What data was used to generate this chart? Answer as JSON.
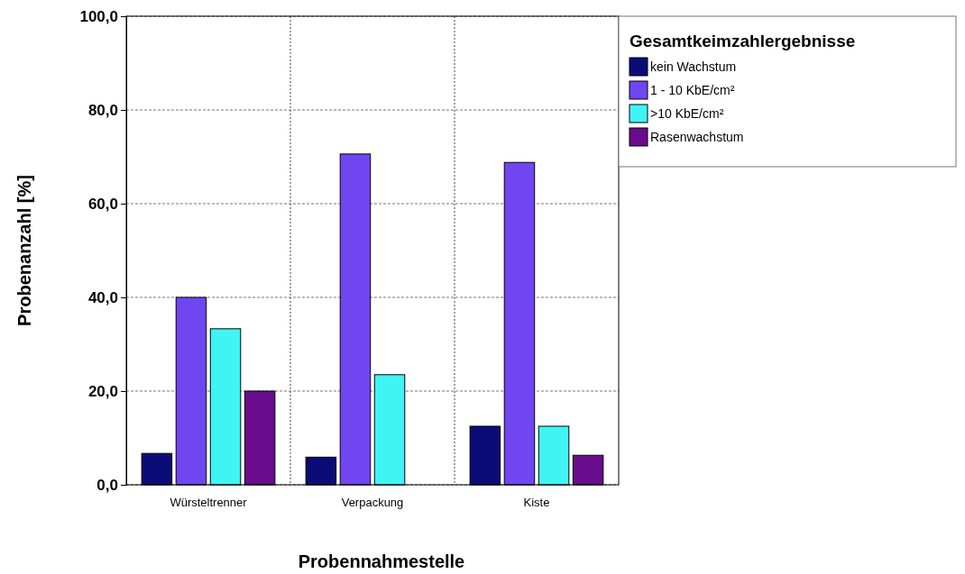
{
  "chart_data": {
    "type": "bar",
    "xlabel": "Probennahmestelle",
    "ylabel": "Probenanzahl [%]",
    "legend_title": "Gesamtkeimzahlergebnisse",
    "categories": [
      "Würsteltrenner",
      "Verpackung",
      "Kiste"
    ],
    "series": [
      {
        "name": "kein Wachstum",
        "color": "#0c0c78",
        "values": [
          6.7,
          5.9,
          12.5
        ]
      },
      {
        "name": "1 - 10 KbE/cm²",
        "color": "#7046f0",
        "values": [
          40.0,
          70.6,
          68.8
        ]
      },
      {
        "name": ">10 KbE/cm²",
        "color": "#40f4f4",
        "values": [
          33.3,
          23.5,
          12.5
        ]
      },
      {
        "name": "Rasenwachstum",
        "color": "#680c8c",
        "values": [
          20.0,
          0,
          6.3
        ]
      }
    ],
    "ylim": [
      0,
      100
    ],
    "yticks": [
      {
        "value": 0,
        "label": "0,0"
      },
      {
        "value": 20,
        "label": "20,0"
      },
      {
        "value": 40,
        "label": "40,0"
      },
      {
        "value": 60,
        "label": "60,0"
      },
      {
        "value": 80,
        "label": "80,0"
      },
      {
        "value": 100,
        "label": "100,0"
      }
    ],
    "grid": true,
    "legend": "right"
  }
}
